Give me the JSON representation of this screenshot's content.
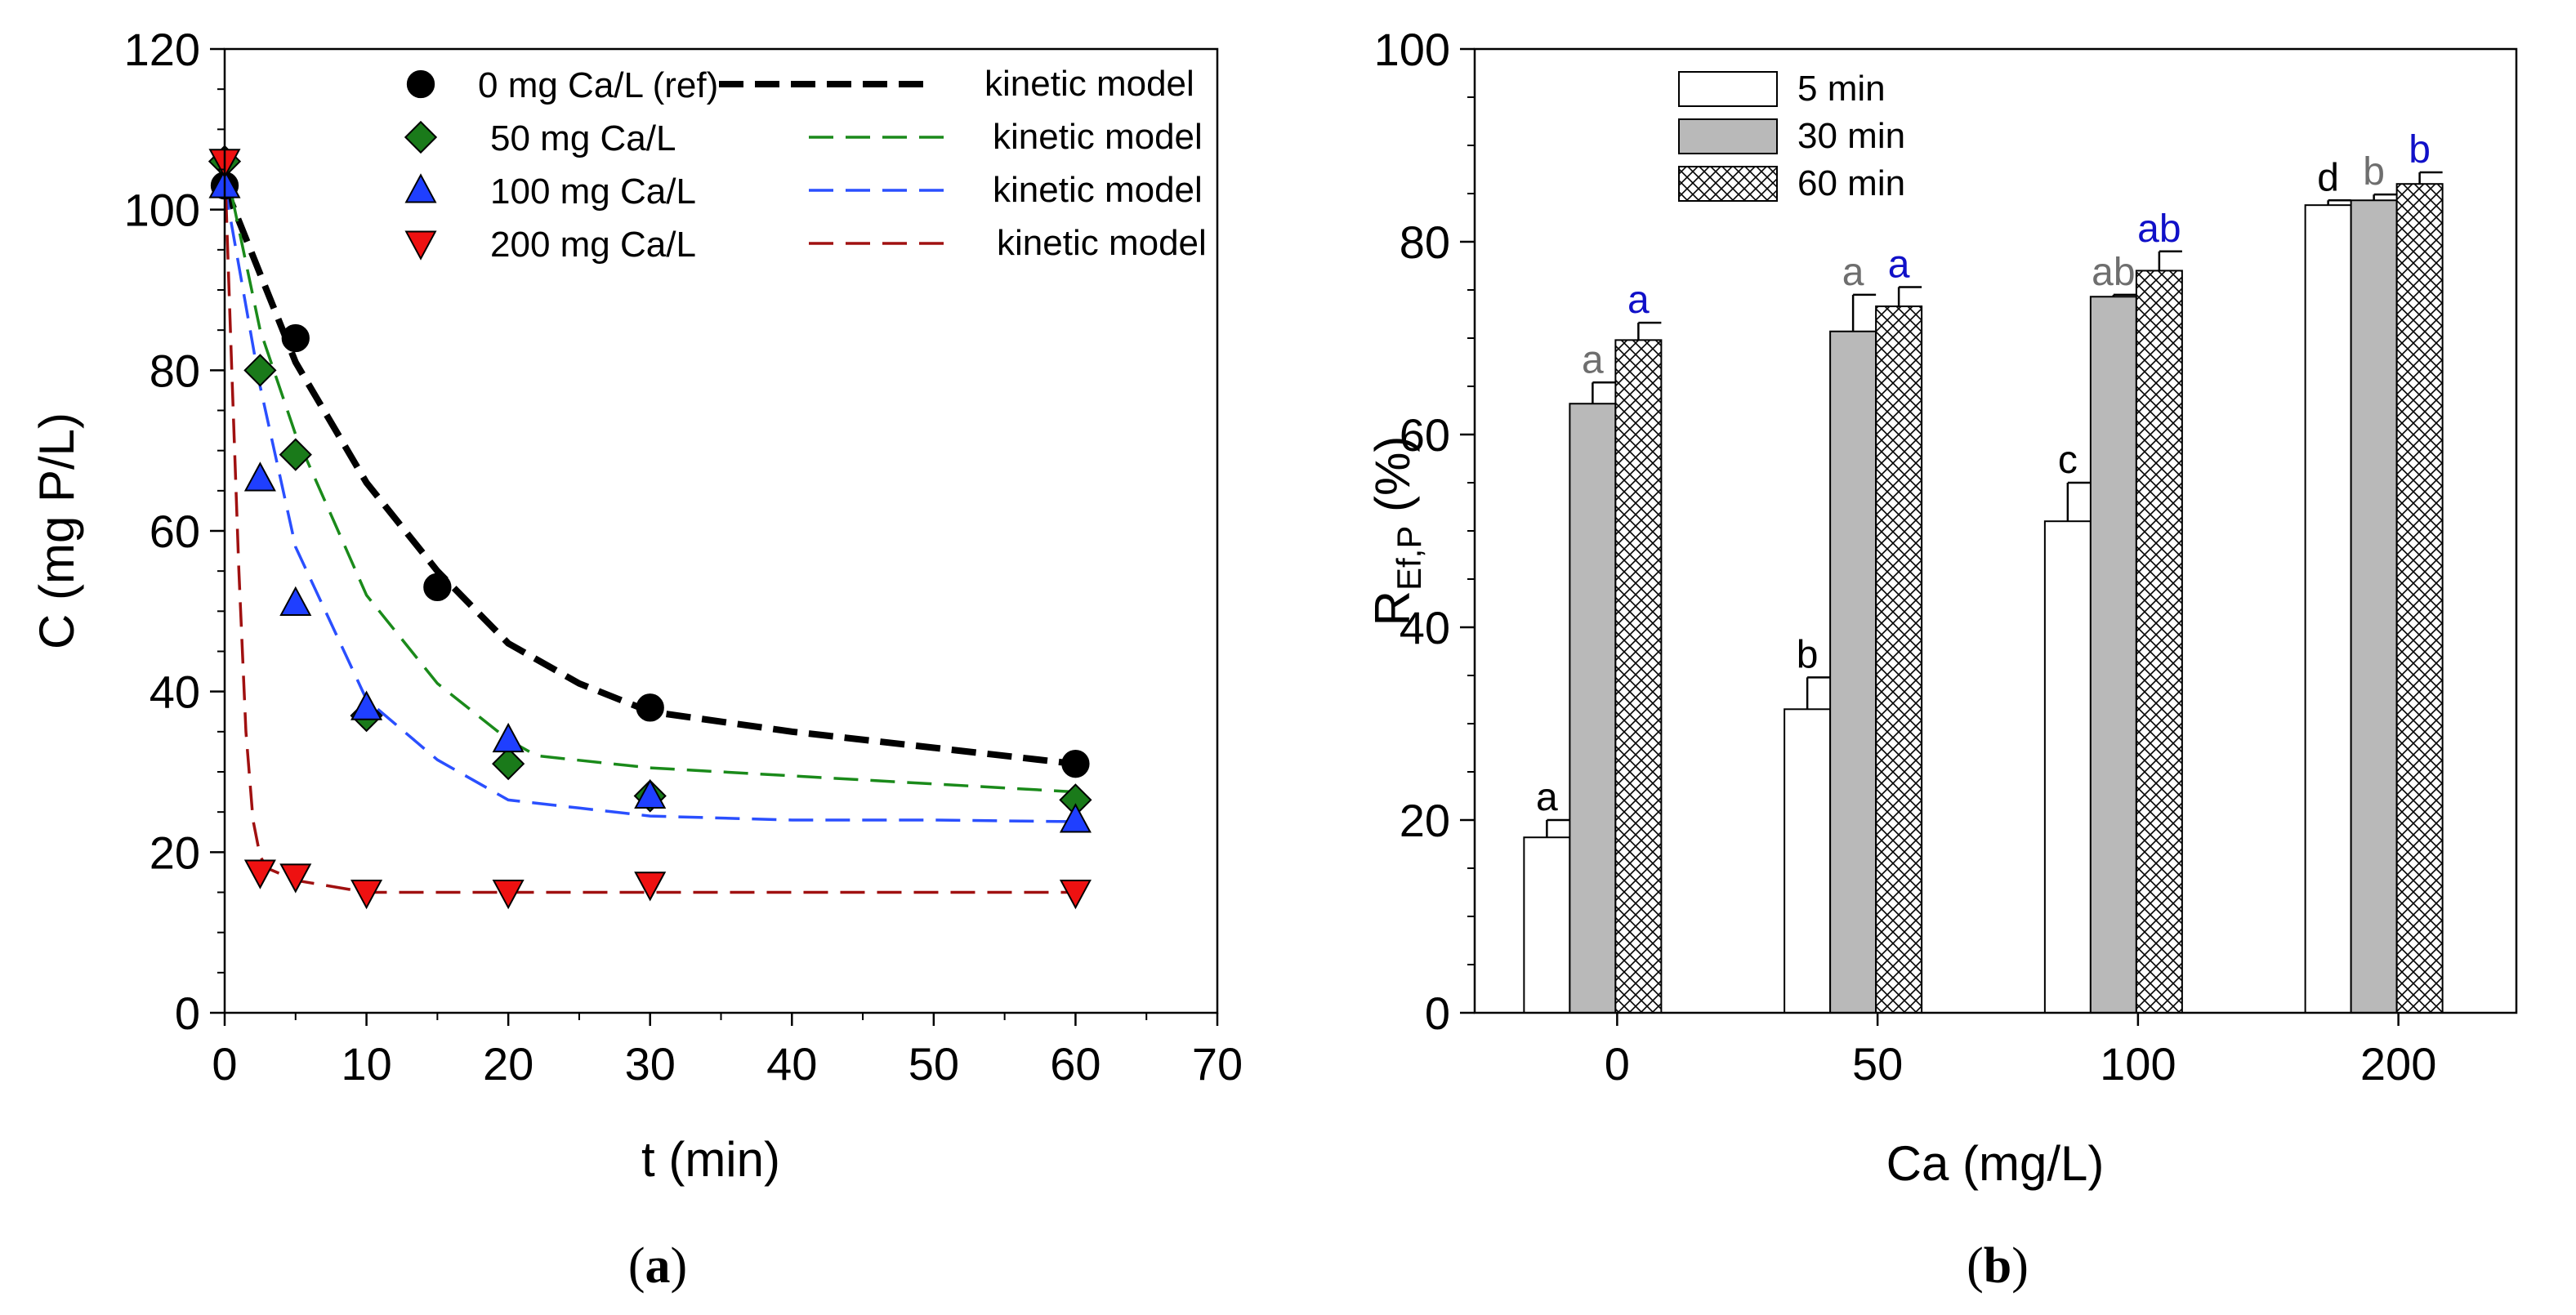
{
  "figure": {
    "panel_a_label": "(a)",
    "panel_b_label": "(b)",
    "panel_a_letter": "a",
    "panel_b_letter": "b"
  },
  "chart_data": [
    {
      "id": "a",
      "type": "scatter",
      "xlabel": "t (min)",
      "ylabel": "C (mg P/L)",
      "xlim": [
        0,
        70
      ],
      "ylim": [
        0,
        120
      ],
      "xticks": [
        0,
        10,
        20,
        30,
        40,
        50,
        60,
        70
      ],
      "yticks": [
        0,
        20,
        40,
        60,
        80,
        100,
        120
      ],
      "legend_position": "top-right",
      "series": [
        {
          "name": "0 mg Ca/L (ref)",
          "marker": "circle",
          "color": "#000000",
          "x": [
            0,
            5,
            15,
            30,
            60
          ],
          "y": [
            103,
            84,
            53,
            38,
            31
          ],
          "model_name": "kinetic model",
          "model_color": "#000000",
          "model_x": [
            0,
            5,
            10,
            15,
            20,
            25,
            30,
            40,
            50,
            60
          ],
          "model_y": [
            103,
            81,
            66,
            55,
            46,
            41,
            37.5,
            35,
            33,
            31
          ]
        },
        {
          "name": "50 mg Ca/L",
          "marker": "diamond",
          "color": "#1a7a1a",
          "x": [
            0,
            2.5,
            5,
            10,
            20,
            30,
            60
          ],
          "y": [
            106,
            80,
            69.5,
            37,
            31,
            27,
            26.5
          ],
          "model_name": "kinetic model",
          "model_color": "#1a8a1a",
          "model_x": [
            0,
            2.5,
            5,
            10,
            15,
            20,
            22,
            30,
            40,
            50,
            60
          ],
          "model_y": [
            106,
            85,
            72,
            52,
            41,
            34,
            32,
            30.5,
            29.5,
            28.5,
            27.5
          ]
        },
        {
          "name": "100 mg Ca/L",
          "marker": "triangle-up",
          "color": "#1f3fff",
          "x": [
            0,
            2.5,
            5,
            10,
            20,
            30,
            60
          ],
          "y": [
            103,
            66.5,
            51,
            38,
            34,
            27,
            24
          ],
          "model_name": "kinetic model",
          "model_color": "#2a4fff",
          "model_x": [
            0,
            2.5,
            5,
            10,
            15,
            20,
            25,
            30,
            40,
            50,
            60
          ],
          "model_y": [
            103,
            78,
            58,
            39,
            31.5,
            26.5,
            25.5,
            24.5,
            24,
            24,
            23.8
          ]
        },
        {
          "name": "200 mg Ca/L",
          "marker": "triangle-down",
          "color": "#ee1111",
          "x": [
            0,
            2.5,
            5,
            10,
            20,
            30,
            60
          ],
          "y": [
            106,
            17.5,
            17,
            15,
            15,
            16,
            15
          ],
          "model_name": "kinetic model",
          "model_color": "#a01010",
          "model_x": [
            0,
            0.5,
            1,
            1.5,
            2,
            2.5,
            3,
            5,
            10,
            20,
            30,
            60
          ],
          "model_y": [
            106,
            80,
            55,
            35,
            24,
            19.5,
            18,
            16.5,
            15,
            15,
            15,
            15
          ]
        }
      ]
    },
    {
      "id": "b",
      "type": "bar",
      "xlabel": "Ca (mg/L)",
      "ylabel_main": "R",
      "ylabel_sub": "Ef,P",
      "ylabel_unit": " (%)",
      "ylim": [
        0,
        100
      ],
      "yticks": [
        0,
        20,
        40,
        60,
        80,
        100
      ],
      "categories": [
        "0",
        "50",
        "100",
        "200"
      ],
      "legend_position": "top-left",
      "series": [
        {
          "name": "5 min",
          "fill": "white",
          "values": [
            18.2,
            31.5,
            51,
            83.8
          ],
          "errors": [
            1.8,
            3.3,
            4,
            0.5
          ],
          "labels": [
            "a",
            "b",
            "c",
            "d"
          ],
          "label_color": "#000000"
        },
        {
          "name": "30 min",
          "fill": "gray",
          "values": [
            63.2,
            70.7,
            74.3,
            84.3
          ],
          "errors": [
            2.2,
            3.8,
            0.2,
            0.6
          ],
          "labels": [
            "a",
            "a",
            "ab",
            "b"
          ],
          "label_color": "#6e6e6e"
        },
        {
          "name": "60 min",
          "fill": "crosshatch",
          "values": [
            69.8,
            73.3,
            77,
            86
          ],
          "errors": [
            1.8,
            2,
            2,
            1.2
          ],
          "labels": [
            "a",
            "a",
            "ab",
            "b"
          ],
          "label_color": "#1010c8"
        }
      ]
    }
  ]
}
